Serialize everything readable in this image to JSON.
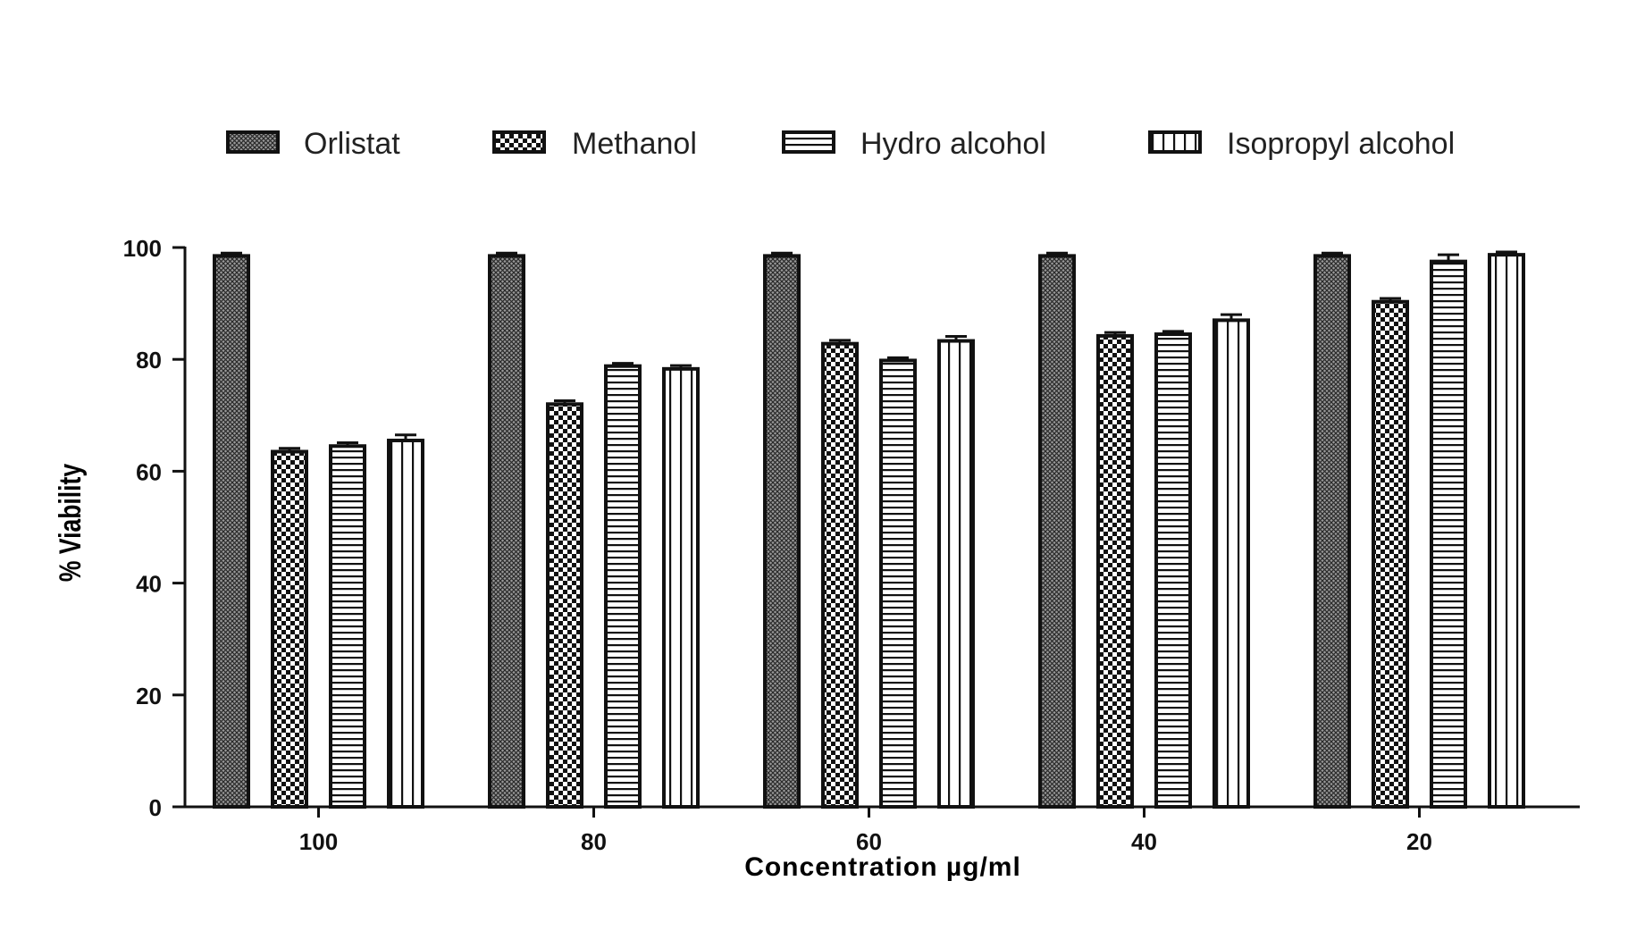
{
  "chart_data": {
    "type": "bar",
    "title": "",
    "xlabel": "Concentration µg/ml",
    "ylabel": "% Viability",
    "categories": [
      "100",
      "80",
      "60",
      "40",
      "20"
    ],
    "yticks": [
      "0",
      "20",
      "40",
      "60",
      "80",
      "100"
    ],
    "ylim": [
      0,
      100
    ],
    "grid": false,
    "legend_position": "top",
    "series": [
      {
        "name": "Orlistat",
        "pattern": "fine-crosshatch",
        "values": [
          98.5,
          98.5,
          98.5,
          98.5,
          98.5
        ],
        "errors": [
          0.5,
          0.5,
          0.5,
          0.5,
          0.5
        ]
      },
      {
        "name": "Methanol",
        "pattern": "checkerboard",
        "values": [
          63.5,
          72,
          82.8,
          84.2,
          90.3
        ],
        "errors": [
          0.6,
          0.6,
          0.6,
          0.6,
          0.6
        ]
      },
      {
        "name": "Hydro alcohol",
        "pattern": "horizontal-lines",
        "values": [
          64.5,
          78.8,
          79.8,
          84.5,
          97.5
        ],
        "errors": [
          0.6,
          0.5,
          0.5,
          0.5,
          1.2
        ]
      },
      {
        "name": "Isopropyl alcohol",
        "pattern": "vertical-lines",
        "values": [
          65.5,
          78.3,
          83.3,
          87,
          98.7
        ],
        "errors": [
          1.0,
          0.6,
          0.8,
          1.0,
          0.5
        ]
      }
    ]
  }
}
